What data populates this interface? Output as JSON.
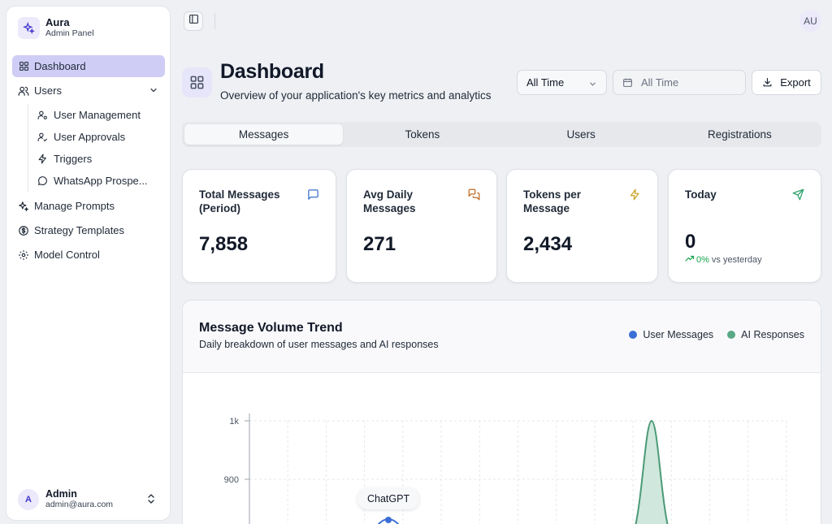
{
  "brand": {
    "name": "Aura",
    "subtitle": "Admin Panel"
  },
  "sidebar": {
    "items": [
      {
        "label": "Dashboard",
        "icon": "grid-icon",
        "active": true
      },
      {
        "label": "Users",
        "icon": "users-icon",
        "expanded": true
      },
      {
        "label": "Manage Prompts",
        "icon": "sparkles-icon"
      },
      {
        "label": "Strategy Templates",
        "icon": "dollar-circle-icon"
      },
      {
        "label": "Model Control",
        "icon": "gear-icon"
      }
    ],
    "users_sub": [
      {
        "label": "User Management",
        "icon": "user-cog-icon"
      },
      {
        "label": "User Approvals",
        "icon": "user-check-icon"
      },
      {
        "label": "Triggers",
        "icon": "bolt-icon"
      },
      {
        "label": "WhatsApp Prospe...",
        "icon": "chat-bubble-icon"
      }
    ],
    "footer": {
      "avatar": "A",
      "name": "Admin",
      "email": "admin@aura.com"
    }
  },
  "topbar": {
    "avatar": "AU"
  },
  "header": {
    "title": "Dashboard",
    "subtitle": "Overview of your application's key metrics and analytics",
    "period_select": "All Time",
    "date_range_placeholder": "All Time",
    "export_label": "Export"
  },
  "tabs": [
    {
      "label": "Messages",
      "active": true
    },
    {
      "label": "Tokens"
    },
    {
      "label": "Users"
    },
    {
      "label": "Registrations"
    }
  ],
  "stats": [
    {
      "label_line1": "Total Messages",
      "label_line2": "(Period)",
      "value": "7,858",
      "icon": "message-square-icon",
      "icon_color": "#3b6fc9"
    },
    {
      "label_line1": "Avg Daily",
      "label_line2": "Messages",
      "value": "271",
      "icon": "messages-icon",
      "icon_color": "#c26a1f"
    },
    {
      "label_line1": "Tokens per",
      "label_line2": "Message",
      "value": "2,434",
      "icon": "zap-icon",
      "icon_color": "#c9a227"
    },
    {
      "label_line1": "Today",
      "label_line2": "",
      "value": "0",
      "icon": "send-icon",
      "icon_color": "#2ea36b",
      "trend_pct": "0%",
      "trend_text": "vs yesterday"
    }
  ],
  "chart_panel": {
    "title": "Message Volume Trend",
    "subtitle": "Daily breakdown of user messages and AI responses",
    "tooltip": "ChatGPT"
  },
  "chart_data": {
    "type": "area",
    "ytick_labels": [
      "1k",
      "900"
    ],
    "series": [
      {
        "name": "User Messages",
        "color": "#3b6fd6"
      },
      {
        "name": "AI Responses",
        "color": "#5aa885"
      }
    ],
    "peak_value": 1000,
    "grid": true,
    "legend": "top-right"
  }
}
